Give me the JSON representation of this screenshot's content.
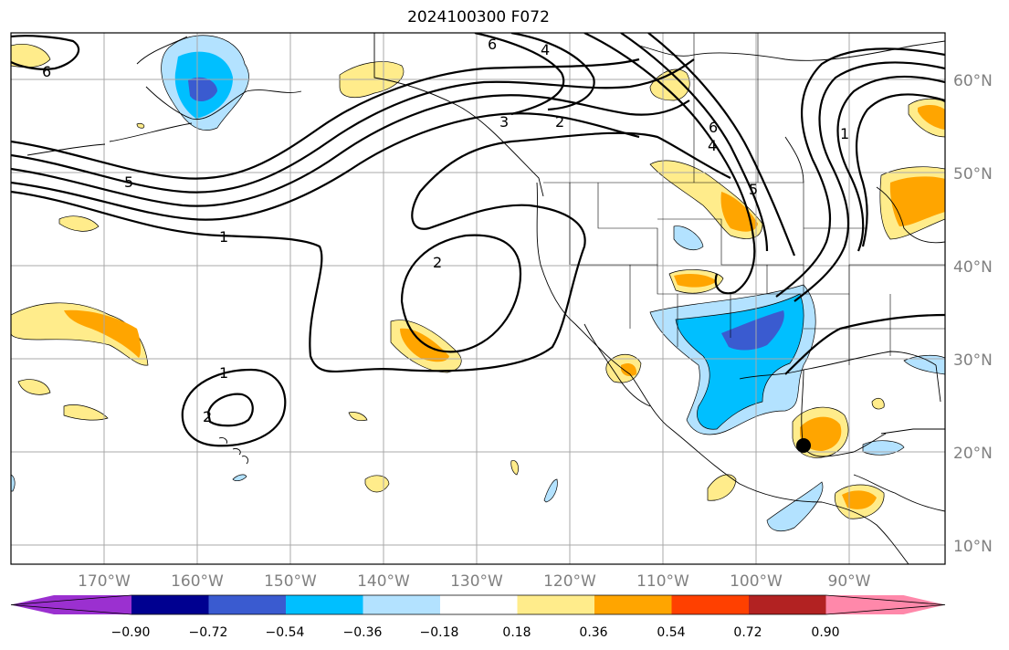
{
  "title": "2024100300 F072",
  "lat_labels": [
    "60°N",
    "50°N",
    "40°N",
    "30°N",
    "20°N",
    "10°N"
  ],
  "lon_labels": [
    "170°W",
    "160°W",
    "150°W",
    "140°W",
    "130°W",
    "120°W",
    "110°W",
    "100°W",
    "90°W"
  ],
  "colorbar": {
    "ticks": [
      "−0.90",
      "−0.72",
      "−0.54",
      "−0.36",
      "−0.18",
      "0.18",
      "0.36",
      "0.54",
      "0.72",
      "0.90"
    ],
    "colors": [
      "#9b30d0",
      "#000090",
      "#3a5bd0",
      "#00bfff",
      "#b3e2ff",
      "#ffffff",
      "#ffec8b",
      "#ffa500",
      "#ff4000",
      "#b22222",
      "#ff88aa"
    ]
  },
  "contour_labels": [
    "6",
    "4",
    "6",
    "3",
    "2",
    "6",
    "4",
    "5",
    "5",
    "1",
    "1",
    "2",
    "1",
    "2"
  ],
  "marker": "black-dot"
}
